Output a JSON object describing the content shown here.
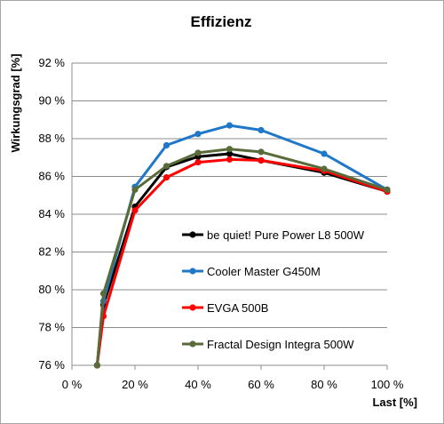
{
  "chart_data": {
    "type": "line",
    "title": "Effizienz",
    "xlabel": "Last [%]",
    "ylabel": "Wirkungsgrad [%]",
    "xlim": [
      0,
      100
    ],
    "ylim": [
      76,
      92
    ],
    "x_ticks": [
      0,
      20,
      40,
      60,
      80,
      100
    ],
    "x_tick_labels": [
      "0 %",
      "20 %",
      "40 %",
      "60 %",
      "80 %",
      "100 %"
    ],
    "y_ticks": [
      76,
      78,
      80,
      82,
      84,
      86,
      88,
      90,
      92
    ],
    "y_tick_labels": [
      "76 %",
      "78 %",
      "80 %",
      "82 %",
      "84 %",
      "86 %",
      "88 %",
      "90 %",
      "92 %"
    ],
    "grid": "horizontal",
    "legend_position": "bottom-right",
    "series": [
      {
        "name": "be quiet! Pure Power L8 500W",
        "color": "#000000",
        "points": [
          [
            8,
            76.0
          ],
          [
            10,
            79.2
          ],
          [
            20,
            84.4
          ],
          [
            30,
            86.5
          ],
          [
            40,
            87.05
          ],
          [
            50,
            87.2
          ],
          [
            60,
            86.85
          ],
          [
            80,
            86.2
          ],
          [
            100,
            85.2
          ]
        ]
      },
      {
        "name": "Cooler Master G450M",
        "color": "#1f77c8",
        "points": [
          [
            8,
            76.0
          ],
          [
            10,
            79.4
          ],
          [
            20,
            85.45
          ],
          [
            30,
            87.65
          ],
          [
            40,
            88.25
          ],
          [
            50,
            88.7
          ],
          [
            60,
            88.45
          ],
          [
            80,
            87.2
          ],
          [
            100,
            85.3
          ]
        ]
      },
      {
        "name": "EVGA 500B",
        "color": "#ff0000",
        "points": [
          [
            8,
            76.0
          ],
          [
            10,
            78.6
          ],
          [
            20,
            84.2
          ],
          [
            30,
            85.95
          ],
          [
            40,
            86.75
          ],
          [
            50,
            86.9
          ],
          [
            60,
            86.85
          ],
          [
            80,
            86.3
          ],
          [
            100,
            85.2
          ]
        ]
      },
      {
        "name": "Fractal Design Integra 500W",
        "color": "#5a6b3a",
        "points": [
          [
            8,
            76.0
          ],
          [
            10,
            79.8
          ],
          [
            20,
            85.3
          ],
          [
            30,
            86.55
          ],
          [
            40,
            87.25
          ],
          [
            50,
            87.45
          ],
          [
            60,
            87.3
          ],
          [
            80,
            86.4
          ],
          [
            100,
            85.3
          ]
        ]
      }
    ]
  }
}
